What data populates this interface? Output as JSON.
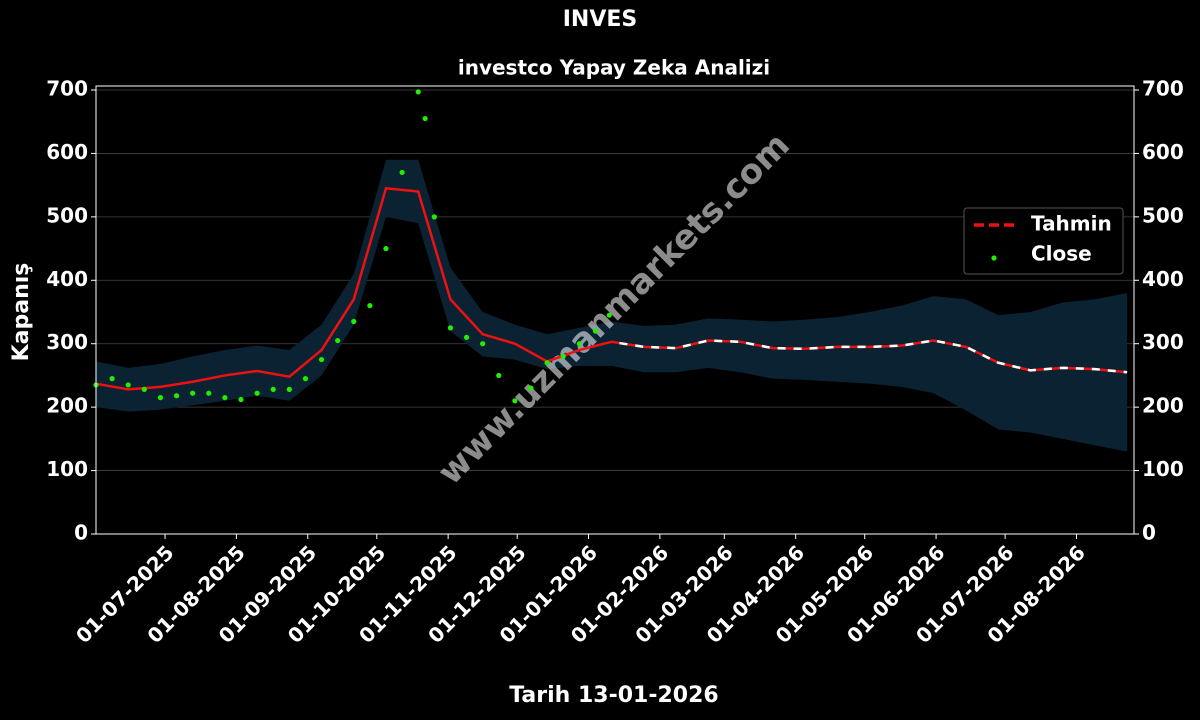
{
  "chart_data": {
    "type": "line",
    "title": "INVES",
    "subtitle": "investco Yapay Zeka Analizi",
    "xlabel": "Tarih 13-01-2026",
    "ylabel": "Kapanış",
    "watermark": "www.uzmanmarkets.com",
    "xlim": [
      "2025-06-01",
      "2026-08-26"
    ],
    "xticks": [
      {
        "value": "2025-07-01",
        "label": "01-07-2025"
      },
      {
        "value": "2025-08-01",
        "label": "01-08-2025"
      },
      {
        "value": "2025-09-01",
        "label": "01-09-2025"
      },
      {
        "value": "2025-10-01",
        "label": "01-10-2025"
      },
      {
        "value": "2025-11-01",
        "label": "01-11-2025"
      },
      {
        "value": "2025-12-01",
        "label": "01-12-2025"
      },
      {
        "value": "2026-01-01",
        "label": "01-01-2026"
      },
      {
        "value": "2026-02-01",
        "label": "01-02-2026"
      },
      {
        "value": "2026-03-01",
        "label": "01-03-2026"
      },
      {
        "value": "2026-04-01",
        "label": "01-04-2026"
      },
      {
        "value": "2026-05-01",
        "label": "01-05-2026"
      },
      {
        "value": "2026-06-01",
        "label": "01-06-2026"
      },
      {
        "value": "2026-07-01",
        "label": "01-07-2026"
      },
      {
        "value": "2026-08-01",
        "label": "01-08-2026"
      }
    ],
    "ylim": [
      0,
      700
    ],
    "yticks": [
      0,
      100,
      200,
      300,
      400,
      500,
      600,
      700
    ],
    "y2lim": [
      0,
      700
    ],
    "y2ticks": [
      0,
      100,
      200,
      300,
      400,
      500,
      600,
      700
    ],
    "grid": true,
    "legend": "right",
    "band": {
      "color": "#0b2233",
      "x": [
        "2025-06-01",
        "2025-06-15",
        "2025-06-29",
        "2025-07-13",
        "2025-07-27",
        "2025-08-10",
        "2025-08-24",
        "2025-09-07",
        "2025-09-21",
        "2025-10-05",
        "2025-10-19",
        "2025-11-02",
        "2025-11-16",
        "2025-11-30",
        "2025-12-14",
        "2025-12-28",
        "2026-01-11",
        "2026-01-25",
        "2026-02-08",
        "2026-02-22",
        "2026-03-08",
        "2026-03-22",
        "2026-04-05",
        "2026-04-19",
        "2026-05-03",
        "2026-05-17",
        "2026-05-31",
        "2026-06-14",
        "2026-06-28",
        "2026-07-12",
        "2026-07-26",
        "2026-08-09",
        "2026-08-23"
      ],
      "upper": [
        272,
        262,
        268,
        280,
        290,
        297,
        290,
        330,
        410,
        590,
        590,
        420,
        350,
        330,
        315,
        325,
        335,
        328,
        330,
        340,
        338,
        335,
        338,
        342,
        350,
        360,
        375,
        370,
        345,
        350,
        365,
        370,
        380
      ],
      "lower": [
        200,
        193,
        196,
        203,
        210,
        218,
        210,
        250,
        330,
        500,
        490,
        320,
        280,
        275,
        260,
        265,
        265,
        255,
        255,
        262,
        255,
        245,
        243,
        240,
        237,
        232,
        222,
        195,
        165,
        160,
        150,
        140,
        130
      ]
    },
    "series": [
      {
        "name": "Tahmin",
        "color": "#ee1111",
        "type": "line",
        "x": [
          "2025-06-01",
          "2025-06-15",
          "2025-06-29",
          "2025-07-13",
          "2025-07-27",
          "2025-08-10",
          "2025-08-24",
          "2025-09-07",
          "2025-09-21",
          "2025-10-05",
          "2025-10-19",
          "2025-11-02",
          "2025-11-16",
          "2025-11-30",
          "2025-12-14",
          "2025-12-28",
          "2026-01-11",
          "2026-01-25",
          "2026-02-08",
          "2026-02-22",
          "2026-03-08",
          "2026-03-22",
          "2026-04-05",
          "2026-04-19",
          "2026-05-03",
          "2026-05-17",
          "2026-05-31",
          "2026-06-14",
          "2026-06-28",
          "2026-07-12",
          "2026-07-26",
          "2026-08-09",
          "2026-08-23"
        ],
        "values": [
          237,
          228,
          232,
          240,
          250,
          257,
          248,
          290,
          370,
          545,
          540,
          370,
          315,
          300,
          272,
          290,
          303,
          295,
          293,
          305,
          303,
          293,
          292,
          295,
          295,
          297,
          305,
          295,
          270,
          258,
          262,
          260,
          255
        ]
      },
      {
        "name": "Close",
        "color": "#22ee00",
        "type": "scatter",
        "x": [
          "2025-06-01",
          "2025-06-08",
          "2025-06-15",
          "2025-06-22",
          "2025-06-29",
          "2025-07-06",
          "2025-07-13",
          "2025-07-20",
          "2025-07-27",
          "2025-08-03",
          "2025-08-10",
          "2025-08-17",
          "2025-08-24",
          "2025-08-31",
          "2025-09-07",
          "2025-09-14",
          "2025-09-21",
          "2025-09-28",
          "2025-10-05",
          "2025-10-12",
          "2025-10-19",
          "2025-10-22",
          "2025-10-26",
          "2025-11-02",
          "2025-11-09",
          "2025-11-16",
          "2025-11-23",
          "2025-11-30",
          "2025-12-07",
          "2025-12-14",
          "2025-12-21",
          "2025-12-28",
          "2026-01-04",
          "2026-01-10"
        ],
        "values": [
          235,
          245,
          235,
          228,
          215,
          218,
          222,
          222,
          215,
          212,
          222,
          228,
          228,
          245,
          275,
          305,
          335,
          360,
          450,
          570,
          697,
          655,
          500,
          325,
          310,
          300,
          250,
          210,
          230,
          270,
          280,
          300,
          320,
          345
        ]
      }
    ]
  }
}
